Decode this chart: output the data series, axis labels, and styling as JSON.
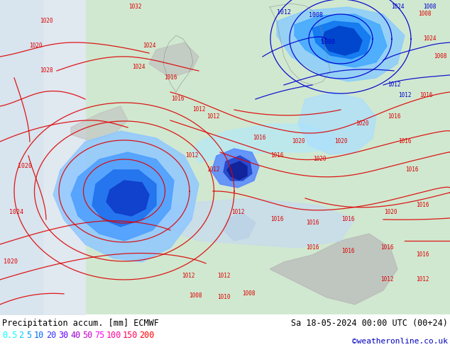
{
  "title_left": "Precipitation accum. [mm] ECMWF",
  "title_right": "Sa 18-05-2024 00:00 UTC (00+24)",
  "credit": "©weatheronline.co.uk",
  "legend_values": [
    "0.5",
    "2",
    "5",
    "10",
    "20",
    "30",
    "40",
    "50",
    "75",
    "100",
    "150",
    "200"
  ],
  "legend_colors": [
    "#00ffff",
    "#00ccff",
    "#0099ff",
    "#0066ff",
    "#3333ff",
    "#6600ff",
    "#9900cc",
    "#cc00cc",
    "#ff00ff",
    "#ff0099",
    "#ff0055",
    "#ff0000"
  ],
  "fig_width": 6.34,
  "fig_height": 4.9,
  "dpi": 100,
  "text_color": "#000000",
  "credit_color": "#0000bb",
  "bottom_bg": "#ffffff",
  "map_area_color": "#d8eed8",
  "ocean_color": "#c0d8f0",
  "precip_light": "#a8d8ff",
  "precip_mid": "#60aaff",
  "precip_dark": "#2255dd",
  "precip_intense": "#1133aa",
  "isobar_red": "#dd0000",
  "isobar_blue": "#0000cc",
  "land_gray": "#c8c8c8",
  "land_gray2": "#b0b0b0"
}
